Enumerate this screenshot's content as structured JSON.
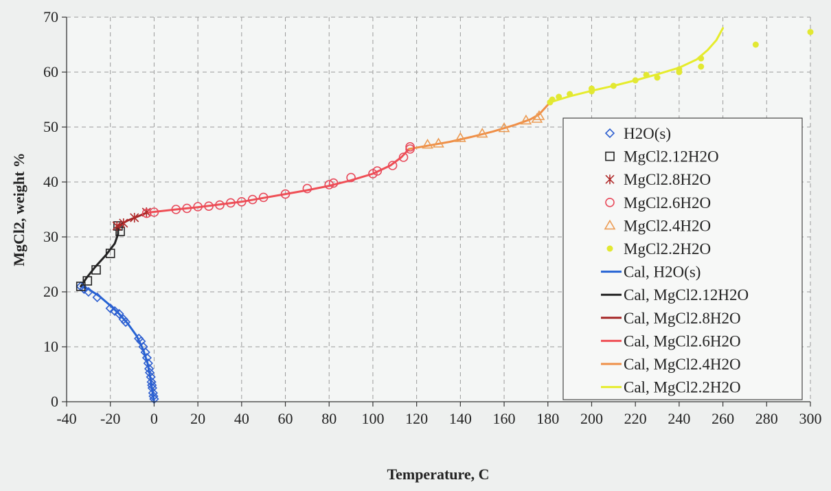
{
  "chart_data": {
    "type": "scatter",
    "title": "",
    "xlabel": "Temperature, C",
    "ylabel": "MgCl2, weight %",
    "xlim": [
      -40,
      300
    ],
    "ylim": [
      0,
      70
    ],
    "x_ticks": [
      -40,
      -20,
      0,
      20,
      40,
      60,
      80,
      100,
      120,
      140,
      160,
      180,
      200,
      220,
      240,
      260,
      280,
      300
    ],
    "y_ticks": [
      0,
      10,
      20,
      30,
      40,
      50,
      60,
      70
    ],
    "grid": true,
    "legend_position": "right",
    "series": [
      {
        "name": "H2O(s)",
        "kind": "points",
        "marker": "diamond",
        "color": "#2e5fd0",
        "points": [
          [
            0,
            0.5
          ],
          [
            -0.3,
            1
          ],
          [
            -0.5,
            1.6
          ],
          [
            -0.8,
            2.5
          ],
          [
            -1,
            3
          ],
          [
            -1.2,
            3.6
          ],
          [
            -1.5,
            4.5
          ],
          [
            -2,
            5.3
          ],
          [
            -2.3,
            6
          ],
          [
            -2.7,
            7
          ],
          [
            -3.3,
            8
          ],
          [
            -4,
            9
          ],
          [
            -5,
            10
          ],
          [
            -6,
            11
          ],
          [
            -7,
            11.5
          ],
          [
            -13,
            14.5
          ],
          [
            -14,
            15
          ],
          [
            -16,
            16
          ],
          [
            -18,
            16.5
          ],
          [
            -20,
            17
          ],
          [
            -26,
            19
          ],
          [
            -30,
            20
          ],
          [
            -32,
            20.5
          ],
          [
            -33.5,
            21
          ]
        ]
      },
      {
        "name": "MgCl2.12H2O",
        "kind": "points",
        "marker": "square",
        "color": "#222222",
        "points": [
          [
            -33.5,
            21
          ],
          [
            -30.5,
            22
          ],
          [
            -26.5,
            24
          ],
          [
            -20,
            27
          ],
          [
            -15.5,
            31
          ],
          [
            -16.5,
            32
          ]
        ]
      },
      {
        "name": "MgCl2.8H2O",
        "kind": "points",
        "marker": "asterisk",
        "color": "#b02a2a",
        "points": [
          [
            -17,
            32
          ],
          [
            -14,
            32.5
          ],
          [
            -9,
            33.5
          ],
          [
            -3.5,
            34.5
          ]
        ]
      },
      {
        "name": "MgCl2.6H2O",
        "kind": "points",
        "marker": "circle",
        "color": "#e8495a",
        "points": [
          [
            -3.4,
            34.3
          ],
          [
            0,
            34.5
          ],
          [
            10,
            35
          ],
          [
            15,
            35.2
          ],
          [
            20,
            35.5
          ],
          [
            25,
            35.6
          ],
          [
            30,
            35.8
          ],
          [
            35,
            36.2
          ],
          [
            40,
            36.4
          ],
          [
            45,
            36.8
          ],
          [
            50,
            37.2
          ],
          [
            60,
            37.8
          ],
          [
            70,
            38.8
          ],
          [
            80,
            39.5
          ],
          [
            82,
            39.8
          ],
          [
            90,
            40.8
          ],
          [
            100,
            41.5
          ],
          [
            102,
            42
          ],
          [
            109,
            43
          ],
          [
            114,
            44.5
          ],
          [
            117,
            46
          ],
          [
            117,
            46.4
          ]
        ]
      },
      {
        "name": "MgCl2.4H2O",
        "kind": "points",
        "marker": "triangle",
        "color": "#ec9b53",
        "points": [
          [
            125,
            46.8
          ],
          [
            130,
            47
          ],
          [
            140,
            48
          ],
          [
            150,
            48.8
          ],
          [
            160,
            49.8
          ],
          [
            170,
            51.2
          ],
          [
            175,
            51.5
          ],
          [
            176,
            52
          ]
        ]
      },
      {
        "name": "MgCl2.2H2O",
        "kind": "points",
        "marker": "dot",
        "color": "#e2e832",
        "points": [
          [
            181,
            54.5
          ],
          [
            182,
            55
          ],
          [
            185,
            55.5
          ],
          [
            190,
            56
          ],
          [
            200,
            56.5
          ],
          [
            200,
            57
          ],
          [
            210,
            57.5
          ],
          [
            220,
            58.5
          ],
          [
            225,
            59.5
          ],
          [
            230,
            59
          ],
          [
            240,
            60
          ],
          [
            240,
            60.5
          ],
          [
            250,
            61
          ],
          [
            250,
            62.5
          ],
          [
            275,
            65
          ],
          [
            300,
            67.3
          ]
        ]
      },
      {
        "name": "Cal, H2O(s)",
        "kind": "line",
        "color": "#2563d4",
        "points": [
          [
            0,
            0
          ],
          [
            -1,
            2.5
          ],
          [
            -2,
            5
          ],
          [
            -3,
            7
          ],
          [
            -5,
            9.5
          ],
          [
            -8,
            12
          ],
          [
            -12,
            14.2
          ],
          [
            -16,
            16
          ],
          [
            -20,
            17.5
          ],
          [
            -25,
            19.2
          ],
          [
            -30,
            20.5
          ],
          [
            -33.5,
            21
          ]
        ]
      },
      {
        "name": "Cal, MgCl2.12H2O",
        "kind": "line",
        "color": "#222222",
        "points": [
          [
            -33.5,
            21
          ],
          [
            -31,
            22.5
          ],
          [
            -27,
            24.5
          ],
          [
            -22,
            26.7
          ],
          [
            -18,
            28.8
          ],
          [
            -16.5,
            30.5
          ],
          [
            -16.5,
            32
          ]
        ]
      },
      {
        "name": "Cal, MgCl2.8H2O",
        "kind": "line",
        "color": "#a52626",
        "points": [
          [
            -16.5,
            32
          ],
          [
            -12,
            33
          ],
          [
            -7,
            33.8
          ],
          [
            -3.5,
            34.4
          ]
        ]
      },
      {
        "name": "Cal, MgCl2.6H2O",
        "kind": "line",
        "color": "#ef4f55",
        "points": [
          [
            -3.5,
            34.4
          ],
          [
            10,
            35
          ],
          [
            20,
            35.4
          ],
          [
            30,
            35.9
          ],
          [
            40,
            36.4
          ],
          [
            50,
            37.1
          ],
          [
            60,
            37.8
          ],
          [
            70,
            38.5
          ],
          [
            80,
            39.3
          ],
          [
            90,
            40.3
          ],
          [
            100,
            41.5
          ],
          [
            108,
            43
          ],
          [
            113,
            44.5
          ],
          [
            116.5,
            46
          ]
        ]
      },
      {
        "name": "Cal, MgCl2.4H2O",
        "kind": "line",
        "color": "#ef8f47",
        "points": [
          [
            116.5,
            46
          ],
          [
            125,
            46.6
          ],
          [
            135,
            47.3
          ],
          [
            145,
            48.2
          ],
          [
            155,
            49.2
          ],
          [
            165,
            50.4
          ],
          [
            172,
            51.4
          ],
          [
            176,
            52.3
          ],
          [
            181,
            54.5
          ]
        ]
      },
      {
        "name": "Cal, MgCl2.2H2O",
        "kind": "line",
        "color": "#e6ec2c",
        "points": [
          [
            181,
            54.5
          ],
          [
            190,
            55.6
          ],
          [
            200,
            56.6
          ],
          [
            210,
            57.5
          ],
          [
            220,
            58.5
          ],
          [
            230,
            59.6
          ],
          [
            240,
            60.8
          ],
          [
            248,
            62.3
          ],
          [
            253,
            64
          ],
          [
            257,
            65.8
          ],
          [
            260,
            68
          ]
        ]
      }
    ]
  }
}
